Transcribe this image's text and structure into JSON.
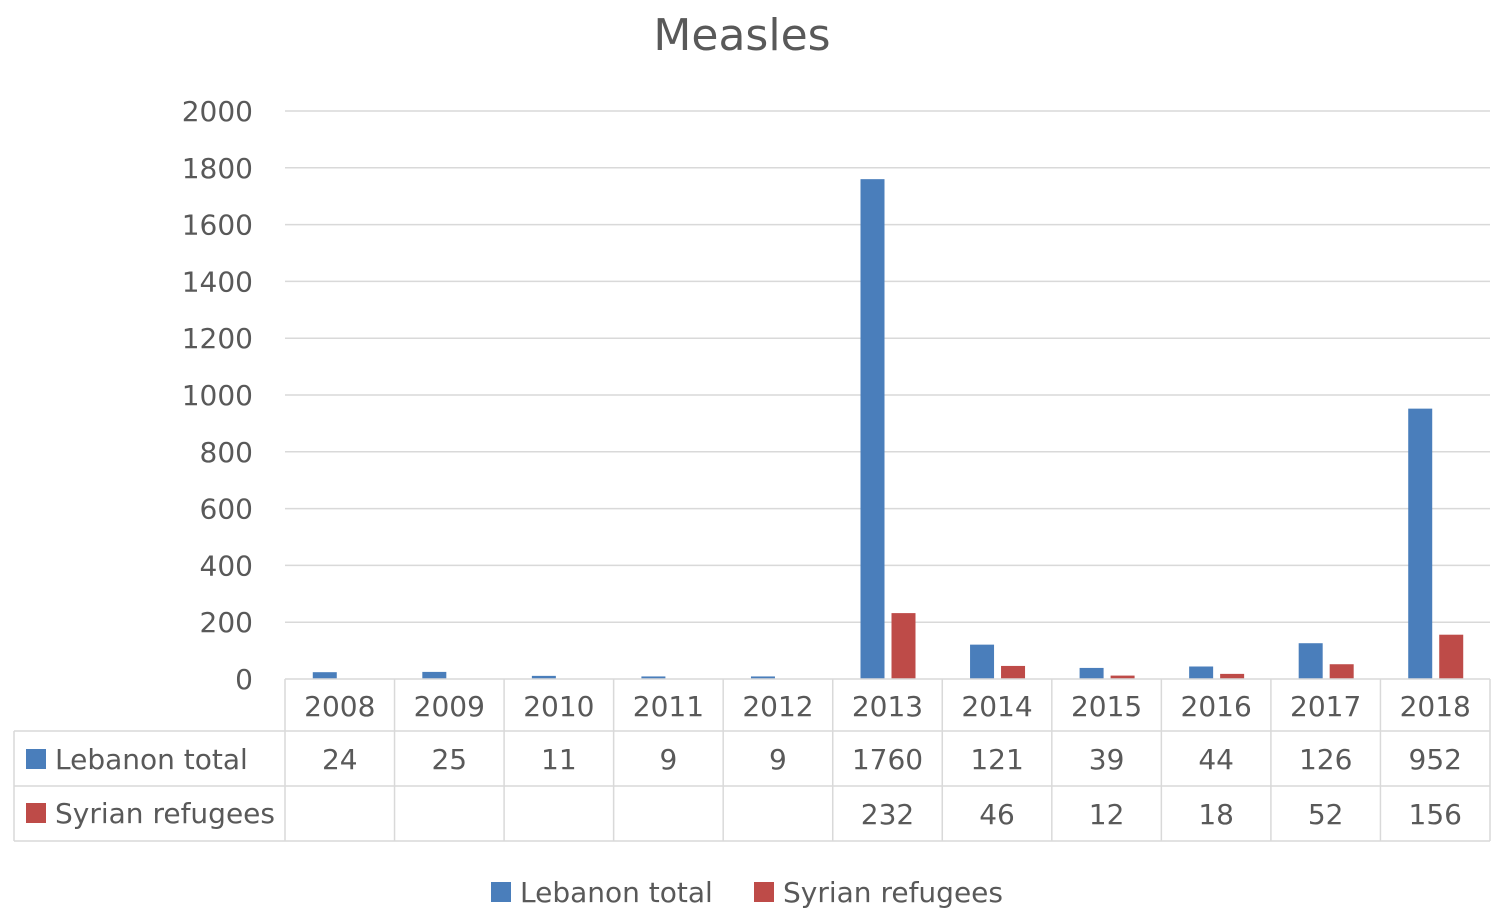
{
  "chart_data": {
    "type": "bar",
    "title": "Measles",
    "categories": [
      "2008",
      "2009",
      "2010",
      "2011",
      "2012",
      "2013",
      "2014",
      "2015",
      "2016",
      "2017",
      "2018"
    ],
    "series": [
      {
        "name": "Lebanon total",
        "color": "#4a7ebb",
        "values": [
          24,
          25,
          11,
          9,
          9,
          1760,
          121,
          39,
          44,
          126,
          952
        ]
      },
      {
        "name": "Syrian refugees",
        "color": "#be4b48",
        "values": [
          null,
          null,
          null,
          null,
          null,
          232,
          46,
          12,
          18,
          52,
          156
        ]
      }
    ],
    "ylim": [
      0,
      2000
    ],
    "yticks": [
      0,
      200,
      400,
      600,
      800,
      1000,
      1200,
      1400,
      1600,
      1800,
      2000
    ],
    "grid": true,
    "legend": "bottom",
    "data_table": true,
    "xlabel": "",
    "ylabel": ""
  }
}
